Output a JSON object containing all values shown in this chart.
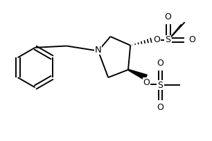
{
  "background": "#ffffff",
  "line_color": "#000000",
  "lw": 1.4,
  "figsize": [
    3.06,
    2.04
  ],
  "dpi": 100,
  "xlim": [
    0,
    9.5
  ],
  "ylim": [
    0,
    6.33
  ]
}
